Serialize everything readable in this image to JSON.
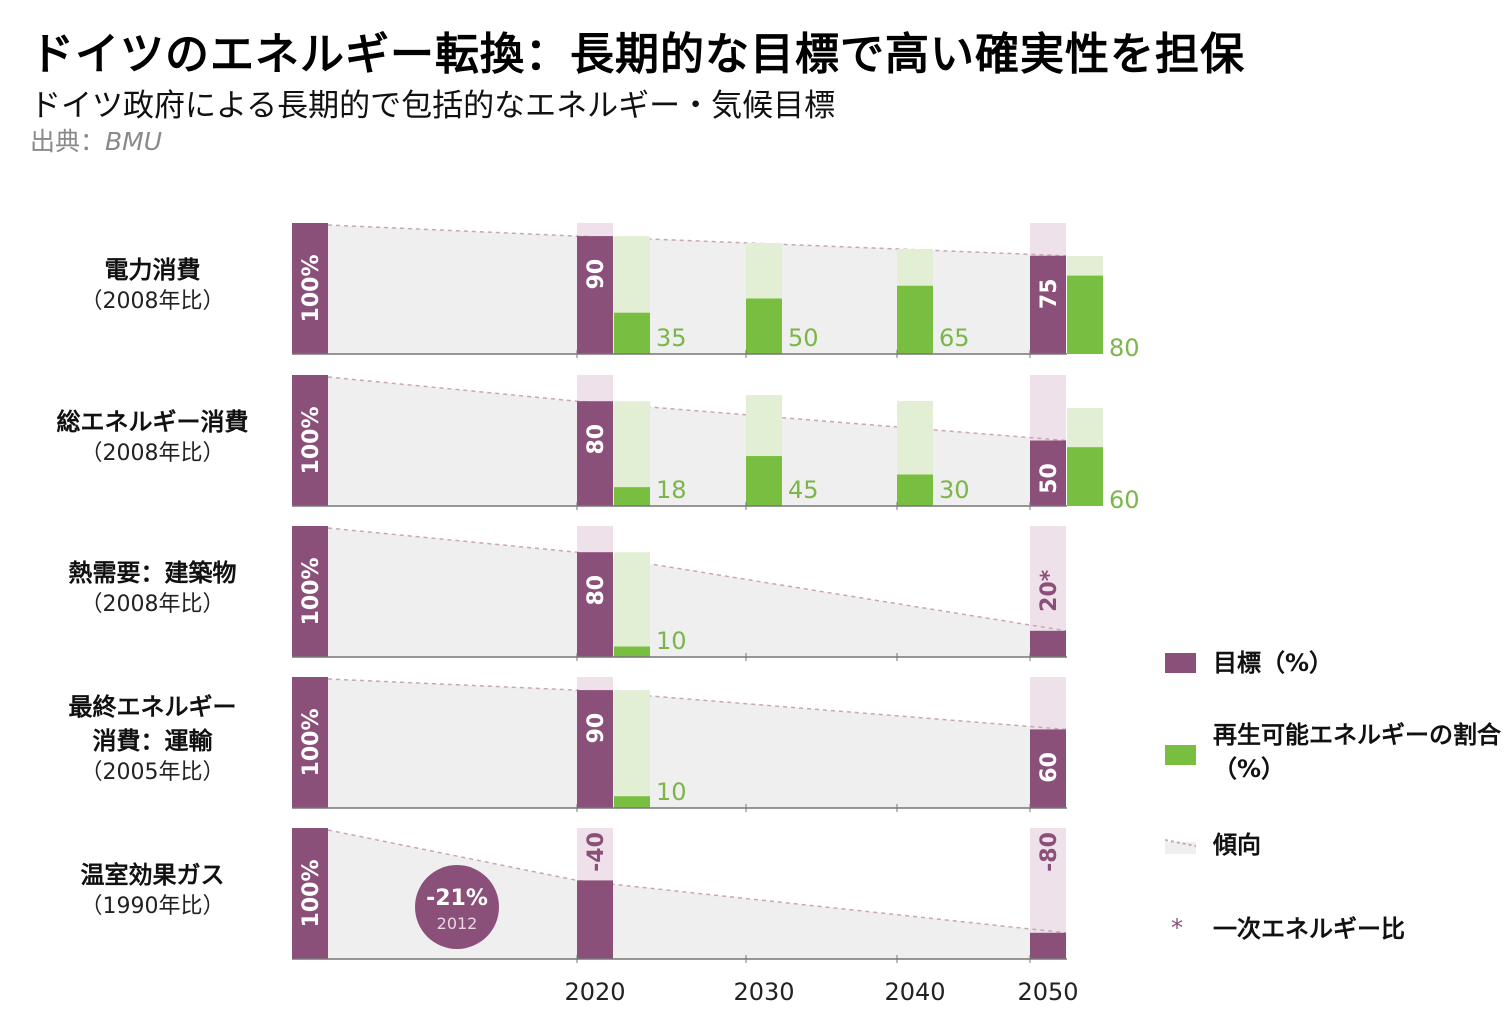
{
  "title": "ドイツのエネルギー転換：長期的な目標で高い確実性を担保",
  "subtitle": "ドイツ政府による長期的で包括的なエネルギー・気候目標",
  "source_label": "出典：",
  "source_name": "BMU",
  "colors": {
    "target": "#8b5079",
    "target_track": "#efe1e9",
    "renewable": "#78bf41",
    "renewable_track": "#e2efd4",
    "trend_area": "#efefef",
    "trend_line": "#c9a6b7",
    "renewable_text": "#7ab648",
    "axis": "#777777"
  },
  "legend": [
    {
      "key": "target",
      "label": "目標（%）"
    },
    {
      "key": "renewable",
      "label": "再生可能エネルギーの割合（%）"
    },
    {
      "key": "trend",
      "label": "傾向"
    },
    {
      "key": "primary",
      "symbol": "*",
      "label": "一次エネルギー比"
    }
  ],
  "chart_data": {
    "type": "bar",
    "x": [
      2020,
      2030,
      2040,
      2050
    ],
    "x_tick_labels": [
      "2020",
      "2030",
      "2040",
      "2050"
    ],
    "rows": [
      {
        "name": "電力消費",
        "base": "（2008年比）",
        "baseline_label": "100%",
        "targets": [
          {
            "year": 2020,
            "value": 90,
            "label": "90"
          },
          {
            "year": 2050,
            "value": 75,
            "label": "75"
          }
        ],
        "renewables": [
          {
            "year": 2020,
            "value": 35,
            "label": "35"
          },
          {
            "year": 2030,
            "value": 50,
            "label": "50"
          },
          {
            "year": 2040,
            "value": 65,
            "label": "65"
          },
          {
            "year": 2050,
            "value": 80,
            "label": "80"
          }
        ]
      },
      {
        "name": "総エネルギー消費",
        "base": "（2008年比）",
        "baseline_label": "100%",
        "targets": [
          {
            "year": 2020,
            "value": 80,
            "label": "80"
          },
          {
            "year": 2050,
            "value": 50,
            "label": "50"
          }
        ],
        "renewables": [
          {
            "year": 2020,
            "value": 18,
            "label": "18"
          },
          {
            "year": 2030,
            "value": 45,
            "label": "45"
          },
          {
            "year": 2040,
            "value": 30,
            "label": "30"
          },
          {
            "year": 2050,
            "value": 60,
            "label": "60"
          }
        ]
      },
      {
        "name": "熱需要：建築物",
        "base": "（2008年比）",
        "baseline_label": "100%",
        "targets": [
          {
            "year": 2020,
            "value": 80,
            "label": "80"
          },
          {
            "year": 2050,
            "value": 20,
            "label": "20*"
          }
        ],
        "renewables": [
          {
            "year": 2020,
            "value": 10,
            "label": "10"
          }
        ]
      },
      {
        "name": "最終エネルギー消費：運輸",
        "name_lines": [
          "最終エネルギー",
          "消費：運輸"
        ],
        "base": "（2005年比）",
        "baseline_label": "100%",
        "targets": [
          {
            "year": 2020,
            "value": 90,
            "label": "90"
          },
          {
            "year": 2050,
            "value": 60,
            "label": "60"
          }
        ],
        "renewables": [
          {
            "year": 2020,
            "value": 10,
            "label": "10"
          }
        ]
      },
      {
        "name": "温室効果ガス",
        "base": "（1990年比）",
        "baseline_label": "100%",
        "targets": [
          {
            "year": 2020,
            "value": -40,
            "label": "-40"
          },
          {
            "year": 2050,
            "value": -80,
            "label": "-80"
          }
        ],
        "renewables": [],
        "callout": {
          "value": "-21%",
          "year": "2012"
        }
      }
    ]
  }
}
